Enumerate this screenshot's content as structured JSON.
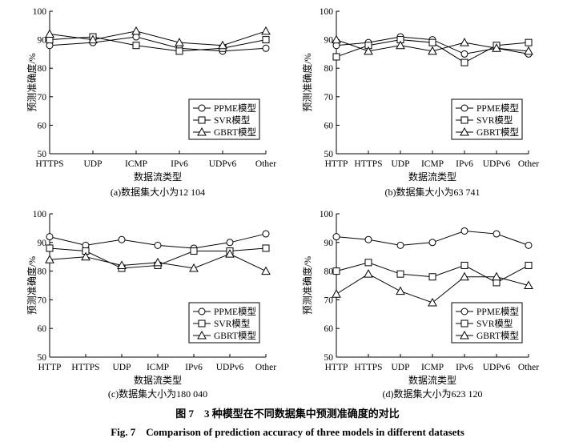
{
  "figure": {
    "caption_cn": "图 7　3 种模型在不同数据集中预测准确度的对比",
    "caption_en": "Fig. 7　Comparison of prediction accuracy of three models in different datasets"
  },
  "chart_data": [
    {
      "type": "line",
      "caption": "(a)数据集大小为12 104",
      "xlabel": "数据流类型",
      "ylabel": "预测准确度/%",
      "ylim": [
        50,
        100
      ],
      "yticks": [
        50,
        60,
        70,
        80,
        90,
        100
      ],
      "categories": [
        "HTTPS",
        "UDP",
        "ICMP",
        "IPv6",
        "UDPv6",
        "Other"
      ],
      "legend_position": "bottom-right",
      "series": [
        {
          "name": "PPME模型",
          "marker": "circle",
          "values": [
            88,
            89,
            91,
            87,
            86,
            87
          ]
        },
        {
          "name": "SVR模型",
          "marker": "square",
          "values": [
            90,
            91,
            88,
            86,
            87,
            90
          ]
        },
        {
          "name": "GBRT模型",
          "marker": "triangle",
          "values": [
            92,
            90,
            93,
            89,
            88,
            93
          ]
        }
      ]
    },
    {
      "type": "line",
      "caption": "(b)数据集大小为63 741",
      "xlabel": "数据流类型",
      "ylabel": "预测准确度/%",
      "ylim": [
        50,
        100
      ],
      "yticks": [
        50,
        60,
        70,
        80,
        90,
        100
      ],
      "categories": [
        "HTTP",
        "HTTPS",
        "UDP",
        "ICMP",
        "IPv6",
        "UDPv6",
        "Other"
      ],
      "legend_position": "bottom-right",
      "series": [
        {
          "name": "PPME模型",
          "marker": "circle",
          "values": [
            88,
            89,
            91,
            90,
            85,
            87,
            85
          ]
        },
        {
          "name": "SVR模型",
          "marker": "square",
          "values": [
            84,
            88,
            90,
            89,
            82,
            88,
            89
          ]
        },
        {
          "name": "GBRT模型",
          "marker": "triangle",
          "values": [
            90,
            86,
            88,
            86,
            89,
            87,
            86
          ]
        }
      ]
    },
    {
      "type": "line",
      "caption": "(c)数据集大小为180 040",
      "xlabel": "数据流类型",
      "ylabel": "预测准确度/%",
      "ylim": [
        50,
        100
      ],
      "yticks": [
        50,
        60,
        70,
        80,
        90,
        100
      ],
      "categories": [
        "HTTP",
        "HTTPS",
        "UDP",
        "ICMP",
        "IPv6",
        "UDPv6",
        "Other"
      ],
      "legend_position": "bottom-right",
      "series": [
        {
          "name": "PPME模型",
          "marker": "circle",
          "values": [
            92,
            89,
            91,
            89,
            88,
            90,
            93
          ]
        },
        {
          "name": "SVR模型",
          "marker": "square",
          "values": [
            88,
            87,
            81,
            82,
            87,
            87,
            88
          ]
        },
        {
          "name": "GBRT模型",
          "marker": "triangle",
          "values": [
            84,
            85,
            82,
            83,
            81,
            86,
            80
          ]
        }
      ]
    },
    {
      "type": "line",
      "caption": "(d)数据集大小为623 120",
      "xlabel": "数据流类型",
      "ylabel": "预测准确度/%",
      "ylim": [
        50,
        100
      ],
      "yticks": [
        50,
        60,
        70,
        80,
        90,
        100
      ],
      "categories": [
        "HTTP",
        "HTTPS",
        "UDP",
        "ICMP",
        "IPv6",
        "UDPv6",
        "Other"
      ],
      "legend_position": "bottom-right",
      "series": [
        {
          "name": "PPME模型",
          "marker": "circle",
          "values": [
            92,
            91,
            89,
            90,
            94,
            93,
            89
          ]
        },
        {
          "name": "SVR模型",
          "marker": "square",
          "values": [
            80,
            83,
            79,
            78,
            82,
            76,
            82
          ]
        },
        {
          "name": "GBRT模型",
          "marker": "triangle",
          "values": [
            72,
            79,
            73,
            69,
            78,
            78,
            75
          ]
        }
      ]
    }
  ]
}
